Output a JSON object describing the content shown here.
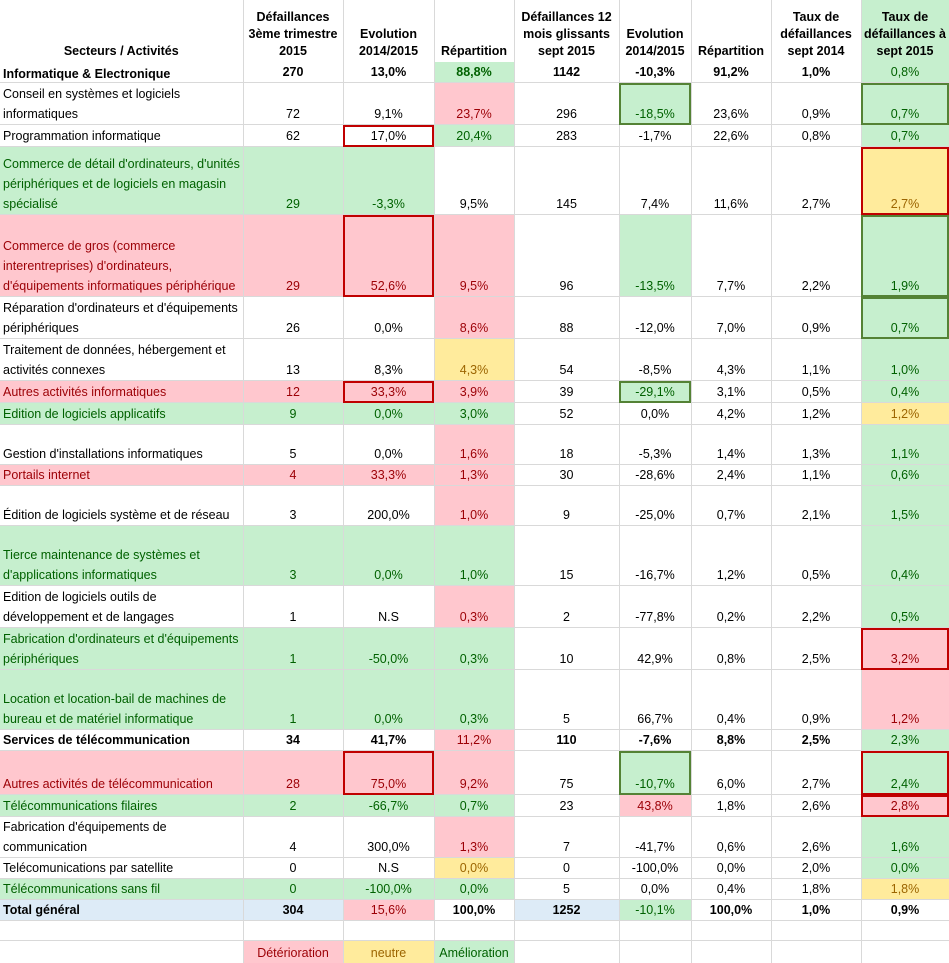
{
  "colors": {
    "deterioration": "#ffc7ce",
    "neutral": "#ffeb9c",
    "improvement": "#c6efce",
    "total": "#ddebf7",
    "red_border": "#c00000",
    "green_border": "#548235"
  },
  "headers": {
    "secteur": "Secteurs / Activités",
    "def_t3": "Défaillances 3ème trimestre 2015",
    "evol1": "Evolution 2014/2015",
    "rep1": "Répartition",
    "def_12m": "Défaillances 12 mois glissants sept 2015",
    "evol2": "Evolution 2014/2015",
    "rep2": "Répartition",
    "taux2014": "Taux de défaillances sept 2014",
    "taux2015": "Taux de défaillances à sept 2015"
  },
  "rows": [
    {
      "label": "Informatique & Electronique",
      "def": "270",
      "evol1": "13,0%",
      "rep1": "88,8%",
      "d12": "1142",
      "evol2": "-10,3%",
      "rep2": "91,2%",
      "t14": "1,0%",
      "t15": "0,8%"
    },
    {
      "label": "Conseil en systèmes et logiciels informatiques",
      "def": "72",
      "evol1": "9,1%",
      "rep1": "23,7%",
      "d12": "296",
      "evol2": "-18,5%",
      "rep2": "23,6%",
      "t14": "0,9%",
      "t15": "0,7%"
    },
    {
      "label": "Programmation informatique",
      "def": "62",
      "evol1": "17,0%",
      "rep1": "20,4%",
      "d12": "283",
      "evol2": "-1,7%",
      "rep2": "22,6%",
      "t14": "0,8%",
      "t15": "0,7%"
    },
    {
      "label": "Commerce de détail d'ordinateurs, d'unités périphériques et de logiciels en magasin spécialisé",
      "def": "29",
      "evol1": "-3,3%",
      "rep1": "9,5%",
      "d12": "145",
      "evol2": "7,4%",
      "rep2": "11,6%",
      "t14": "2,7%",
      "t15": "2,7%"
    },
    {
      "label": "Commerce de gros (commerce interentreprises) d'ordinateurs, d'équipements informatiques périphérique",
      "def": "29",
      "evol1": "52,6%",
      "rep1": "9,5%",
      "d12": "96",
      "evol2": "-13,5%",
      "rep2": "7,7%",
      "t14": "2,2%",
      "t15": "1,9%"
    },
    {
      "label": "Réparation d'ordinateurs et d'équipements périphériques",
      "def": "26",
      "evol1": "0,0%",
      "rep1": "8,6%",
      "d12": "88",
      "evol2": "-12,0%",
      "rep2": "7,0%",
      "t14": "0,9%",
      "t15": "0,7%"
    },
    {
      "label": "Traitement de données, hébergement et activités connexes",
      "def": "13",
      "evol1": "8,3%",
      "rep1": "4,3%",
      "d12": "54",
      "evol2": "-8,5%",
      "rep2": "4,3%",
      "t14": "1,1%",
      "t15": "1,0%"
    },
    {
      "label": "Autres activités informatiques",
      "def": "12",
      "evol1": "33,3%",
      "rep1": "3,9%",
      "d12": "39",
      "evol2": "-29,1%",
      "rep2": "3,1%",
      "t14": "0,5%",
      "t15": "0,4%"
    },
    {
      "label": "Edition de logiciels applicatifs",
      "def": "9",
      "evol1": "0,0%",
      "rep1": "3,0%",
      "d12": "52",
      "evol2": "0,0%",
      "rep2": "4,2%",
      "t14": "1,2%",
      "t15": "1,2%"
    },
    {
      "label": "Gestion d'installations informatiques",
      "def": "5",
      "evol1": "0,0%",
      "rep1": "1,6%",
      "d12": "18",
      "evol2": "-5,3%",
      "rep2": "1,4%",
      "t14": "1,3%",
      "t15": "1,1%"
    },
    {
      "label": "Portails internet",
      "def": "4",
      "evol1": "33,3%",
      "rep1": "1,3%",
      "d12": "30",
      "evol2": "-28,6%",
      "rep2": "2,4%",
      "t14": "1,1%",
      "t15": "0,6%"
    },
    {
      "label": "Édition de logiciels système et de réseau",
      "def": "3",
      "evol1": "200,0%",
      "rep1": "1,0%",
      "d12": "9",
      "evol2": "-25,0%",
      "rep2": "0,7%",
      "t14": "2,1%",
      "t15": "1,5%"
    },
    {
      "label": "Tierce maintenance de systèmes et d'applications informatiques",
      "def": "3",
      "evol1": "0,0%",
      "rep1": "1,0%",
      "d12": "15",
      "evol2": "-16,7%",
      "rep2": "1,2%",
      "t14": "0,5%",
      "t15": "0,4%"
    },
    {
      "label": "Edition de logiciels outils de développement et de langages",
      "def": "1",
      "evol1": "N.S",
      "rep1": "0,3%",
      "d12": "2",
      "evol2": "-77,8%",
      "rep2": "0,2%",
      "t14": "2,2%",
      "t15": "0,5%"
    },
    {
      "label": "Fabrication d'ordinateurs et d'équipements périphériques",
      "def": "1",
      "evol1": "-50,0%",
      "rep1": "0,3%",
      "d12": "10",
      "evol2": "42,9%",
      "rep2": "0,8%",
      "t14": "2,5%",
      "t15": "3,2%"
    },
    {
      "label": "Location et location-bail de machines de bureau et de matériel informatique",
      "def": "1",
      "evol1": "0,0%",
      "rep1": "0,3%",
      "d12": "5",
      "evol2": "66,7%",
      "rep2": "0,4%",
      "t14": "0,9%",
      "t15": "1,2%"
    },
    {
      "label": "Services de télécommunication",
      "def": "34",
      "evol1": "41,7%",
      "rep1": "11,2%",
      "d12": "110",
      "evol2": "-7,6%",
      "rep2": "8,8%",
      "t14": "2,5%",
      "t15": "2,3%"
    },
    {
      "label": "Autres activités de télécommunication",
      "def": "28",
      "evol1": "75,0%",
      "rep1": "9,2%",
      "d12": "75",
      "evol2": "-10,7%",
      "rep2": "6,0%",
      "t14": "2,7%",
      "t15": "2,4%"
    },
    {
      "label": "Télécommunications filaires",
      "def": "2",
      "evol1": "-66,7%",
      "rep1": "0,7%",
      "d12": "23",
      "evol2": "43,8%",
      "rep2": "1,8%",
      "t14": "2,6%",
      "t15": "2,8%"
    },
    {
      "label": "Fabrication d'équipements de communication",
      "def": "4",
      "evol1": "300,0%",
      "rep1": "1,3%",
      "d12": "7",
      "evol2": "-41,7%",
      "rep2": "0,6%",
      "t14": "2,6%",
      "t15": "1,6%"
    },
    {
      "label": "Telécomunications par satellite",
      "def": "0",
      "evol1": "N.S",
      "rep1": "0,0%",
      "d12": "0",
      "evol2": "-100,0%",
      "rep2": "0,0%",
      "t14": "2,0%",
      "t15": "0,0%"
    },
    {
      "label": "Télécommunications sans fil",
      "def": "0",
      "evol1": "-100,0%",
      "rep1": "0,0%",
      "d12": "5",
      "evol2": "0,0%",
      "rep2": "0,4%",
      "t14": "1,8%",
      "t15": "1,8%"
    },
    {
      "label": "Total général",
      "def": "304",
      "evol1": "15,6%",
      "rep1": "100,0%",
      "d12": "1252",
      "evol2": "-10,1%",
      "rep2": "100,0%",
      "t14": "1,0%",
      "t15": "0,9%"
    }
  ],
  "legend": {
    "deterioration": "Détérioration",
    "neutral": "neutre",
    "improvement": "Amélioration"
  }
}
